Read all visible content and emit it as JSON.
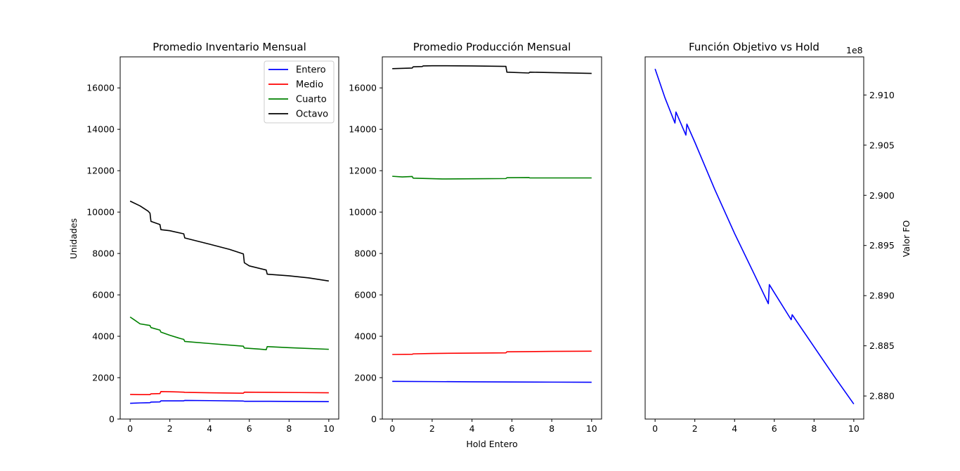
{
  "chart_data": [
    {
      "type": "line",
      "title": "Promedio Inventario Mensual",
      "xlabel": "",
      "ylabel": "Unidades",
      "xlim": [
        -0.5,
        10.5
      ],
      "ylim": [
        0,
        17500
      ],
      "xticks": [
        0,
        2,
        4,
        6,
        8,
        10
      ],
      "yticks": [
        0,
        2000,
        4000,
        6000,
        8000,
        10000,
        12000,
        14000,
        16000
      ],
      "xtick_labels": [
        "0",
        "2",
        "4",
        "6",
        "8",
        "10"
      ],
      "ytick_labels": [
        "0",
        "2000",
        "4000",
        "6000",
        "8000",
        "10000",
        "12000",
        "14000",
        "16000"
      ],
      "legend": "top-right",
      "series": [
        {
          "name": "Entero",
          "color": "#0000ff",
          "x": [
            0,
            0.5,
            1.0,
            1.05,
            1.5,
            1.55,
            2.0,
            2.7,
            2.75,
            4.0,
            5.7,
            5.75,
            7.0,
            8.5,
            10.0
          ],
          "y": [
            760,
            780,
            790,
            820,
            830,
            880,
            880,
            880,
            900,
            890,
            870,
            860,
            860,
            850,
            840
          ]
        },
        {
          "name": "Medio",
          "color": "#ff0000",
          "x": [
            0,
            0.5,
            1.0,
            1.05,
            1.5,
            1.55,
            2.0,
            2.7,
            2.75,
            4.0,
            5.7,
            5.75,
            7.0,
            8.5,
            10.0
          ],
          "y": [
            1190,
            1180,
            1180,
            1220,
            1230,
            1330,
            1320,
            1300,
            1290,
            1270,
            1250,
            1300,
            1290,
            1280,
            1270
          ]
        },
        {
          "name": "Cuarto",
          "color": "#008000",
          "x": [
            0,
            0.2,
            0.5,
            1.0,
            1.05,
            1.5,
            1.55,
            2.0,
            2.5,
            2.7,
            2.75,
            4.0,
            5.7,
            5.75,
            6.5,
            6.85,
            6.9,
            8.0,
            10.0
          ],
          "y": [
            4930,
            4800,
            4600,
            4520,
            4420,
            4300,
            4200,
            4050,
            3900,
            3850,
            3750,
            3650,
            3520,
            3430,
            3380,
            3350,
            3500,
            3450,
            3370
          ]
        },
        {
          "name": "Octavo",
          "color": "#000000",
          "x": [
            0,
            0.5,
            0.9,
            1.0,
            1.05,
            1.5,
            1.55,
            2.0,
            2.7,
            2.75,
            4.0,
            5.0,
            5.7,
            5.75,
            6.0,
            6.85,
            6.9,
            8.0,
            9.0,
            10.0
          ],
          "y": [
            10530,
            10300,
            10050,
            9950,
            9550,
            9400,
            9150,
            9100,
            8950,
            8750,
            8450,
            8200,
            7980,
            7550,
            7400,
            7200,
            7000,
            6920,
            6820,
            6670
          ]
        }
      ]
    },
    {
      "type": "line",
      "title": "Promedio Producción Mensual",
      "xlabel": "Hold Entero",
      "ylabel": "",
      "xlim": [
        -0.5,
        10.5
      ],
      "ylim": [
        0,
        17500
      ],
      "xticks": [
        0,
        2,
        4,
        6,
        8,
        10
      ],
      "yticks": [
        0,
        2000,
        4000,
        6000,
        8000,
        10000,
        12000,
        14000,
        16000
      ],
      "xtick_labels": [
        "0",
        "2",
        "4",
        "6",
        "8",
        "10"
      ],
      "ytick_labels": [
        "0",
        "2000",
        "4000",
        "6000",
        "8000",
        "10000",
        "12000",
        "14000",
        "16000"
      ],
      "series": [
        {
          "color": "#0000ff",
          "x": [
            0,
            2,
            4,
            6,
            8,
            10
          ],
          "y": [
            1820,
            1810,
            1800,
            1790,
            1785,
            1780
          ]
        },
        {
          "color": "#ff0000",
          "x": [
            0,
            1.0,
            1.05,
            2.0,
            5.7,
            5.75,
            8.0,
            10.0
          ],
          "y": [
            3120,
            3130,
            3150,
            3170,
            3200,
            3250,
            3270,
            3280
          ]
        },
        {
          "color": "#008000",
          "x": [
            0,
            0.5,
            1.0,
            1.05,
            2.5,
            4.0,
            5.7,
            5.75,
            6.85,
            6.9,
            8.0,
            10.0
          ],
          "y": [
            11730,
            11700,
            11720,
            11640,
            11600,
            11610,
            11620,
            11660,
            11670,
            11650,
            11650,
            11650
          ]
        },
        {
          "color": "#000000",
          "x": [
            0,
            1.0,
            1.05,
            1.5,
            1.55,
            2.0,
            2.5,
            4.0,
            5.7,
            5.75,
            6.85,
            6.9,
            8.0,
            10.0
          ],
          "y": [
            16930,
            16960,
            17020,
            17030,
            17060,
            17070,
            17070,
            17060,
            17040,
            16760,
            16720,
            16760,
            16740,
            16700
          ]
        }
      ]
    },
    {
      "type": "line",
      "title": "Función Objetivo vs Hold",
      "xlabel": "",
      "ylabel": "Valor FO",
      "offset_text": "1e8",
      "xlim": [
        -0.5,
        10.5
      ],
      "ylim": [
        2.8777,
        2.9138
      ],
      "xticks": [
        0,
        2,
        4,
        6,
        8,
        10
      ],
      "yticks": [
        2.88,
        2.885,
        2.89,
        2.895,
        2.9,
        2.905,
        2.91
      ],
      "xtick_labels": [
        "0",
        "2",
        "4",
        "6",
        "8",
        "10"
      ],
      "ytick_labels": [
        "2.880",
        "2.885",
        "2.890",
        "2.895",
        "2.900",
        "2.905",
        "2.910"
      ],
      "y_axis_side": "right",
      "series": [
        {
          "color": "#0000ff",
          "x": [
            0,
            0.5,
            1.0,
            1.05,
            1.55,
            1.6,
            2.0,
            3.0,
            4.0,
            5.0,
            5.7,
            5.75,
            6.0,
            6.85,
            6.9,
            8.0,
            9.0,
            10.0
          ],
          "y": [
            2.9126,
            2.9097,
            2.9072,
            2.9083,
            2.906,
            2.9071,
            2.9053,
            2.9006,
            2.8962,
            2.8921,
            2.8892,
            2.8911,
            2.8903,
            2.8876,
            2.8881,
            2.8849,
            2.882,
            2.8792
          ]
        }
      ]
    }
  ]
}
